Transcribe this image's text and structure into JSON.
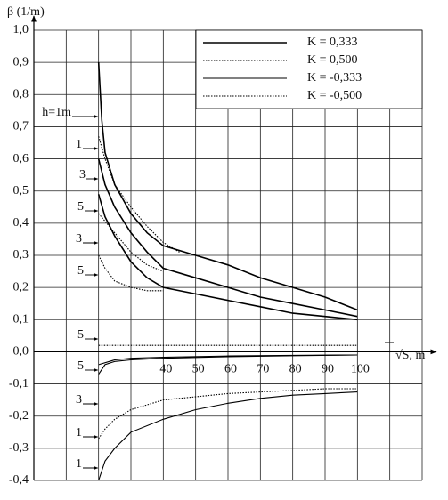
{
  "chart_data": {
    "type": "line",
    "y_label": "β (1/m)",
    "x_label": "√S, m",
    "xlim": [
      0,
      120
    ],
    "ylim": [
      -0.4,
      1.0
    ],
    "xticks": [
      {
        "value": 10,
        "label": null
      },
      {
        "value": 20,
        "label": null
      },
      {
        "value": 30,
        "label": null
      },
      40,
      50,
      60,
      70,
      80,
      90,
      100,
      {
        "value": 110,
        "label": null
      },
      {
        "value": 120,
        "label": null
      }
    ],
    "yticks": [
      {
        "value": -0.4,
        "label": "-0,4"
      },
      {
        "value": -0.3,
        "label": "-0,3"
      },
      {
        "value": -0.2,
        "label": "-0,2"
      },
      {
        "value": -0.1,
        "label": "-0,1"
      },
      {
        "value": 0,
        "label": "0,0"
      },
      {
        "value": 0.1,
        "label": "0,1"
      },
      {
        "value": 0.2,
        "label": "0,2"
      },
      {
        "value": 0.3,
        "label": "0,3"
      },
      {
        "value": 0.4,
        "label": "0,4"
      },
      {
        "value": 0.5,
        "label": "0,5"
      },
      {
        "value": 0.6,
        "label": "0,6"
      },
      {
        "value": 0.7,
        "label": "0,7"
      },
      {
        "value": 0.8,
        "label": "0,8"
      },
      {
        "value": 0.9,
        "label": "0,9"
      },
      {
        "value": 1.0,
        "label": "1,0"
      }
    ],
    "grid": true,
    "legend": "upper right",
    "series": [
      {
        "name": "K = 0,333",
        "color": "#000000",
        "style": "solid",
        "width": 1.6,
        "curves": [
          {
            "label": "h=1m",
            "x": [
              20,
              21,
              22,
              25,
              30,
              35,
              40,
              50,
              60,
              70,
              80,
              90,
              100
            ],
            "values": [
              0.9,
              0.72,
              0.62,
              0.52,
              0.43,
              0.37,
              0.33,
              0.3,
              0.27,
              0.23,
              0.2,
              0.17,
              0.13
            ]
          },
          {
            "label": "3",
            "x": [
              20,
              22,
              25,
              30,
              35,
              40,
              50,
              60,
              70,
              80,
              90,
              100
            ],
            "values": [
              0.6,
              0.52,
              0.45,
              0.37,
              0.31,
              0.26,
              0.23,
              0.2,
              0.17,
              0.15,
              0.13,
              0.11
            ]
          },
          {
            "label": "5",
            "x": [
              20,
              22,
              25,
              30,
              35,
              40,
              50,
              60,
              70,
              80,
              90,
              100
            ],
            "values": [
              0.49,
              0.42,
              0.36,
              0.28,
              0.23,
              0.2,
              0.18,
              0.16,
              0.14,
              0.12,
              0.11,
              0.1
            ]
          }
        ]
      },
      {
        "name": "K = 0,500",
        "color": "#000000",
        "style": "dotted",
        "width": 1.1,
        "curves": [
          {
            "label": "1",
            "x": [
              20,
              22,
              25,
              30,
              35,
              40,
              45
            ],
            "values": [
              0.67,
              0.6,
              0.52,
              0.45,
              0.39,
              0.34,
              0.31
            ]
          },
          {
            "label": "3",
            "x": [
              20,
              25,
              30,
              35,
              40
            ],
            "values": [
              0.43,
              0.37,
              0.31,
              0.27,
              0.25
            ]
          },
          {
            "label": "5",
            "x": [
              20,
              22,
              25,
              30,
              35,
              40
            ],
            "values": [
              0.3,
              0.26,
              0.22,
              0.2,
              0.19,
              0.19
            ]
          }
        ]
      },
      {
        "name": "K = -0,333",
        "color": "#000000",
        "style": "solid",
        "width": 1.1,
        "curves": [
          {
            "label": "1",
            "x": [
              20,
              22,
              25,
              30,
              40,
              50,
              60,
              70,
              80,
              90,
              100
            ],
            "values": [
              -0.4,
              -0.34,
              -0.3,
              -0.25,
              -0.21,
              -0.18,
              -0.16,
              -0.145,
              -0.135,
              -0.13,
              -0.125
            ]
          },
          {
            "label": "3",
            "x": [
              20,
              22,
              25,
              30,
              40,
              60,
              80,
              100
            ],
            "values": [
              -0.07,
              -0.04,
              -0.03,
              -0.025,
              -0.02,
              -0.015,
              -0.012,
              -0.01
            ]
          },
          {
            "label": "5",
            "x": [
              20,
              25,
              30,
              40,
              60,
              80,
              100
            ],
            "values": [
              -0.04,
              -0.025,
              -0.02,
              -0.017,
              -0.013,
              -0.011,
              -0.01
            ]
          }
        ]
      },
      {
        "name": "K = -0,500",
        "color": "#000000",
        "style": "dotted",
        "width": 1.1,
        "curves": [
          {
            "label": "1",
            "x": [
              20,
              22,
              25,
              30,
              40,
              50,
              60,
              70,
              80,
              90,
              100
            ],
            "values": [
              -0.27,
              -0.24,
              -0.21,
              -0.18,
              -0.15,
              -0.14,
              -0.13,
              -0.125,
              -0.12,
              -0.115,
              -0.115
            ]
          },
          {
            "label": "5",
            "x": [
              20,
              100
            ],
            "values": [
              0.02,
              0.02
            ]
          }
        ]
      }
    ]
  }
}
